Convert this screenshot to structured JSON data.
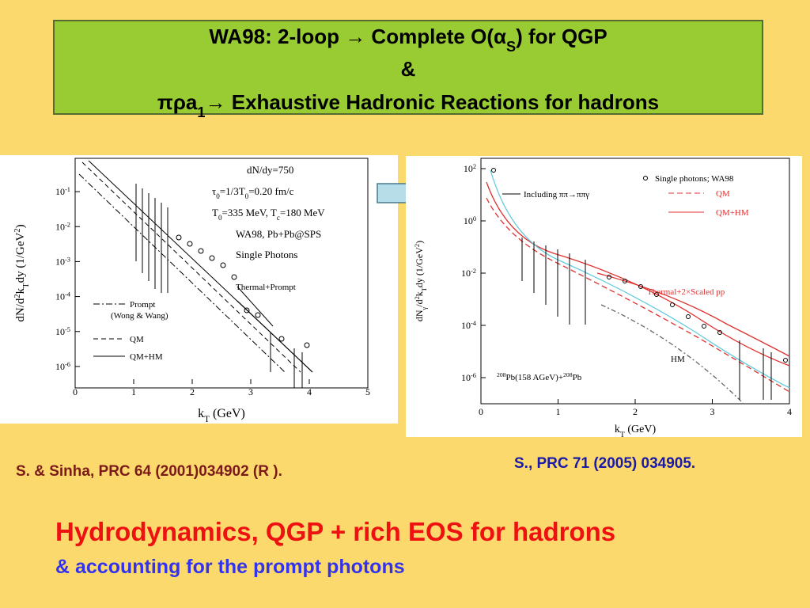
{
  "title": {
    "lines": [
      [
        "WA98: 2-loop → Complete O(α",
        {
          "sub": "S"
        },
        ") for QGP"
      ],
      [
        "&"
      ],
      [
        "πρa",
        {
          "sub": "1"
        },
        "→ Exhaustive Hadronic Reactions for hadrons"
      ]
    ]
  },
  "left_plot": {
    "xticks": [
      0,
      1,
      2,
      3,
      4,
      5
    ],
    "yticks": [
      [
        "10",
        {
          "sup": "-1"
        }
      ],
      [
        "10",
        {
          "sup": "-2"
        }
      ],
      [
        "10",
        {
          "sup": "-3"
        }
      ],
      [
        "10",
        {
          "sup": "-4"
        }
      ],
      [
        "10",
        {
          "sup": "-5"
        }
      ],
      [
        "10",
        {
          "sup": "-6"
        }
      ]
    ],
    "xlabel": [
      "k",
      {
        "sub": "T"
      },
      " (GeV)"
    ],
    "ylabel": [
      "dN/d",
      {
        "sup": "2"
      },
      "k",
      {
        "sub": "T"
      },
      "dy  (1/GeV",
      {
        "sup": "2"
      },
      ")"
    ],
    "notes": [
      [
        "dN/dy=750"
      ],
      [
        "τ",
        {
          "sub": "0"
        },
        "=1/3T",
        {
          "sub": "0"
        },
        "=0.20 fm/c"
      ],
      [
        "T",
        {
          "sub": "0"
        },
        "=335 MeV, T",
        {
          "sub": "c"
        },
        "=180 MeV"
      ],
      [
        "WA98, Pb+Pb@SPS"
      ],
      [
        "Single Photons"
      ]
    ],
    "annotation": "Thermal+Prompt",
    "legend": [
      "Prompt",
      "(Wong & Wang)",
      "QM",
      "QM+HM"
    ]
  },
  "right_plot": {
    "xticks": [
      0,
      1,
      2,
      3,
      4
    ],
    "yticks": [
      [
        "10",
        {
          "sup": "2"
        }
      ],
      [
        "10",
        {
          "sup": "0"
        }
      ],
      [
        "10",
        {
          "sup": "-2"
        }
      ],
      [
        "10",
        {
          "sup": "-4"
        }
      ],
      [
        "10",
        {
          "sup": "-6"
        }
      ]
    ],
    "xlabel": [
      "k",
      {
        "sub": "T"
      },
      " (GeV)"
    ],
    "ylabel": [
      "dN",
      {
        "sub": "γ"
      },
      "/d",
      {
        "sup": "2"
      },
      "k",
      {
        "sub": "T"
      },
      "dy (1/GeV",
      {
        "sup": "2"
      },
      ")"
    ],
    "legend": [
      "Single photons; WA98",
      "QM",
      "QM+HM"
    ],
    "annotations": [
      [
        "Including ππ→ππγ"
      ],
      [
        "Thermal+2×Scaled pp"
      ],
      [
        "HM"
      ],
      [
        {
          "sup": "208"
        },
        "Pb(158 AGeV)+",
        {
          "sup": "208"
        },
        "Pb"
      ]
    ]
  },
  "captions": {
    "left": "S. & Sinha, PRC 64 (2001)034902 (R ).",
    "right": "S., PRC 71 (2005) 034905."
  },
  "conclusion": {
    "line1": "Hydrodynamics, QGP + rich EOS for hadrons",
    "line2": "& accounting for the prompt photons"
  }
}
